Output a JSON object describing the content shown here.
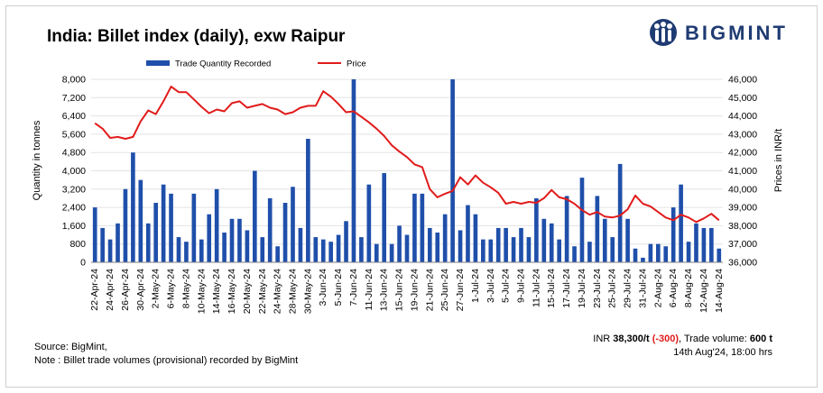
{
  "chart_data": {
    "type": "bar+line",
    "title": "India: Billet index (daily), exw Raipur",
    "y_left_label": "Quantity in tonnes",
    "y_right_label": "Prices in INR/t",
    "y_left_range": [
      0,
      8000
    ],
    "y_right_range": [
      36000,
      46000
    ],
    "y_left_ticks": [
      "0",
      "800",
      "1,600",
      "2,400",
      "3,200",
      "4,000",
      "4,800",
      "5,600",
      "6,400",
      "7,200",
      "8,000"
    ],
    "y_right_ticks": [
      "36,000",
      "37,000",
      "38,000",
      "39,000",
      "40,000",
      "41,000",
      "42,000",
      "43,000",
      "44,000",
      "45,000",
      "46,000"
    ],
    "x_tick_labels": [
      "22-Apr-24",
      "24-Apr-24",
      "26-Apr-24",
      "30-Apr-24",
      "2-May-24",
      "6-May-24",
      "8-May-24",
      "10-May-24",
      "14-May-24",
      "16-May-24",
      "20-May-24",
      "22-May-24",
      "24-May-24",
      "28-May-24",
      "30-May-24",
      "3-Jun-24",
      "5-Jun-24",
      "7-Jun-24",
      "11-Jun-24",
      "13-Jun-24",
      "15-Jun-24",
      "19-Jun-24",
      "21-Jun-24",
      "25-Jun-24",
      "27-Jun-24",
      "1-Jul-24",
      "3-Jul-24",
      "5-Jul-24",
      "9-Jul-24",
      "11-Jul-24",
      "15-Jul-24",
      "17-Jul-24",
      "19-Jul-24",
      "23-Jul-24",
      "25-Jul-24",
      "29-Jul-24",
      "31-Jul-24",
      "2-Aug-24",
      "6-Aug-24",
      "8-Aug-24",
      "12-Aug-24",
      "14-Aug-24"
    ],
    "series": [
      {
        "name": "Trade Quantity Recorded",
        "type": "bar",
        "axis": "left",
        "color": "#1f4faa",
        "values": [
          2400,
          1500,
          1000,
          1700,
          3200,
          4800,
          3600,
          1700,
          2600,
          3400,
          3000,
          1100,
          900,
          3000,
          1000,
          2100,
          3200,
          1300,
          1900,
          1900,
          1400,
          4000,
          1100,
          2800,
          700,
          2600,
          3300,
          1500,
          5400,
          1100,
          1000,
          900,
          1200,
          1800,
          8000,
          1100,
          3400,
          800,
          3900,
          800,
          1600,
          1200,
          3000,
          3000,
          1500,
          1300,
          2100,
          8000,
          1400,
          2500,
          2100,
          1000,
          1000,
          1500,
          1500,
          1100,
          1500,
          1100,
          2800,
          1900,
          1700,
          1000,
          2900,
          700,
          3700,
          900,
          2900,
          1900,
          1100,
          4300,
          1900,
          600,
          200,
          800,
          800,
          700,
          2400,
          3400,
          900,
          1700,
          1500,
          1500,
          600
        ]
      },
      {
        "name": "Price",
        "type": "line",
        "axis": "right",
        "color": "#e11b1b",
        "values": [
          43600,
          43300,
          42800,
          42850,
          42750,
          42850,
          43700,
          44300,
          44100,
          44800,
          45600,
          45300,
          45300,
          44900,
          44500,
          44150,
          44350,
          44250,
          44700,
          44800,
          44450,
          44550,
          44650,
          44450,
          44350,
          44100,
          44200,
          44450,
          44550,
          44550,
          45350,
          45050,
          44650,
          44200,
          44250,
          43950,
          43650,
          43300,
          42900,
          42400,
          42050,
          41750,
          41350,
          41200,
          40000,
          39550,
          39750,
          39900,
          40650,
          40250,
          40750,
          40350,
          40100,
          39800,
          39200,
          39300,
          39200,
          39300,
          39250,
          39500,
          39950,
          39550,
          39450,
          39200,
          38850,
          38600,
          38750,
          38500,
          38450,
          38550,
          38900,
          39650,
          39200,
          39050,
          38750,
          38450,
          38300,
          38600,
          38450,
          38200,
          38400,
          38650,
          38300
        ]
      }
    ],
    "legend": [
      "Trade Quantity Recorded",
      "Price"
    ]
  },
  "header": {
    "title": "India: Billet index (daily), exw Raipur",
    "brand": "BIGMINT"
  },
  "footer": {
    "source": "Source: BigMint,",
    "note": "Note : Billet trade volumes (provisional) recorded by BigMint",
    "price_prefix": "INR ",
    "price_value": "38,300/t",
    "price_change": "(-300)",
    "volume_label": ", Trade volume: ",
    "volume_value": "600 t",
    "timestamp": "14th Aug'24, 18:00 hrs"
  }
}
